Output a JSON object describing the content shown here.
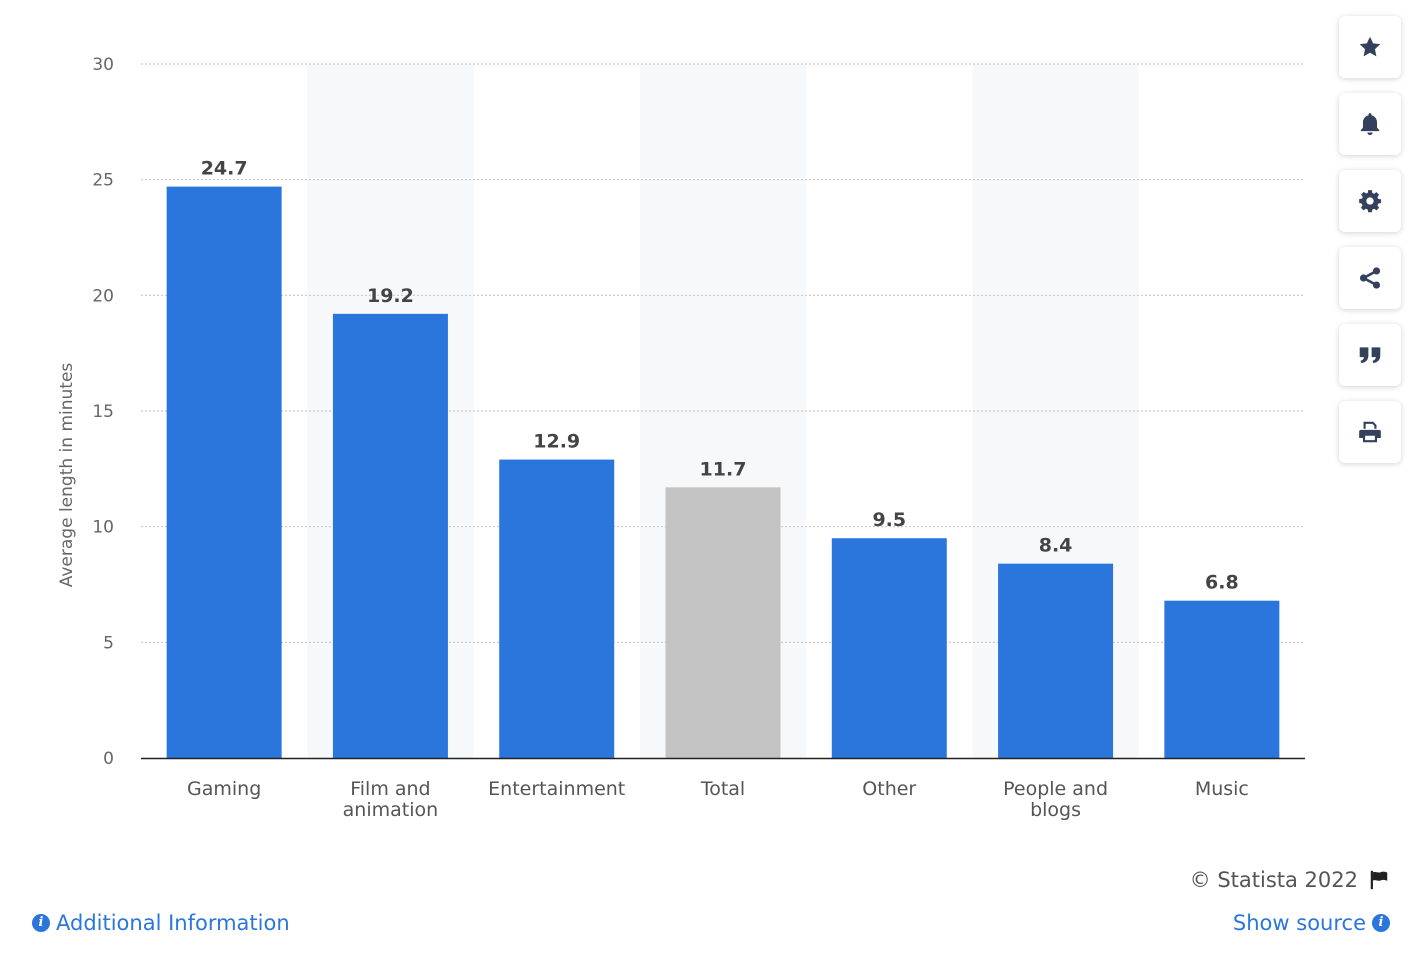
{
  "chart_data": {
    "type": "bar",
    "categories": [
      "Gaming",
      "Film and animation",
      "Entertainment",
      "Total",
      "Other",
      "People and blogs",
      "Music"
    ],
    "category_lines": [
      [
        "Gaming"
      ],
      [
        "Film and",
        "animation"
      ],
      [
        "Entertainment"
      ],
      [
        "Total"
      ],
      [
        "Other"
      ],
      [
        "People and",
        "blogs"
      ],
      [
        "Music"
      ]
    ],
    "values": [
      24.7,
      19.2,
      12.9,
      11.7,
      9.5,
      8.4,
      6.8
    ],
    "value_labels": [
      "24.7",
      "19.2",
      "12.9",
      "11.7",
      "9.5",
      "8.4",
      "6.8"
    ],
    "highlight_category": "Total",
    "ylabel": "Average length in minutes",
    "xlabel": "",
    "ylim": [
      0,
      30
    ],
    "yticks": [
      "0",
      "5",
      "10",
      "15",
      "20",
      "25",
      "30"
    ],
    "grid": true,
    "colors": {
      "bar": "#2a76dd",
      "highlight_bar": "#c3c3c3",
      "band": "#f7f8fa",
      "grid": "#c8c8c8",
      "axis": "#222222"
    }
  },
  "toolbar": {
    "buttons": [
      {
        "name": "favorite",
        "icon": "star-icon"
      },
      {
        "name": "notification",
        "icon": "bell-icon"
      },
      {
        "name": "settings",
        "icon": "gear-icon"
      },
      {
        "name": "share",
        "icon": "share-icon"
      },
      {
        "name": "cite",
        "icon": "quote-icon"
      },
      {
        "name": "print",
        "icon": "print-icon"
      }
    ]
  },
  "footer": {
    "credit": "© Statista 2022",
    "credit_icon": "flag-icon",
    "additional_info": "Additional Information",
    "show_source": "Show source",
    "info_icon": "info-icon",
    "link_color": "#2a76dd"
  }
}
